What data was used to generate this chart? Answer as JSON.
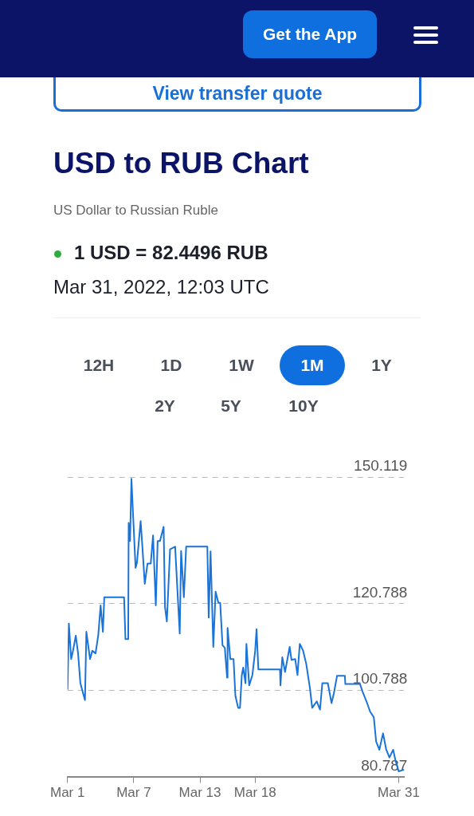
{
  "chart_data": {
    "type": "line",
    "title": "USD to RUB Chart",
    "subtitle": "US Dollar to Russian Ruble",
    "annotations": [
      "Get the App",
      "View transfer quote",
      "1 USD = 82.4496 RUB",
      "Mar 31, 2022, 12:03 UTC",
      "12H",
      "1D",
      "1W",
      "1M",
      "1Y",
      "2Y",
      "5Y",
      "10Y"
    ],
    "x": [
      "2022-03-01T00:00",
      "2022-03-01T03:00",
      "2022-03-01T08:00",
      "2022-03-01T12:00",
      "2022-03-01T18:00",
      "2022-03-01T23:00",
      "2022-03-02T04:00",
      "2022-03-02T10:00",
      "2022-03-02T14:00",
      "2022-03-02T17:00",
      "2022-03-03T01:00",
      "2022-03-03T06:00",
      "2022-03-03T13:00",
      "2022-03-03T19:00",
      "2022-03-04T00:00",
      "2022-03-04T05:00",
      "2022-03-04T08:00",
      "2022-03-06T03:00",
      "2022-03-06T06:00",
      "2022-03-06T12:00",
      "2022-03-06T13:00",
      "2022-03-06T16:00",
      "2022-03-06T19:00",
      "2022-03-06T22:00",
      "2022-03-07T04:00",
      "2022-03-07T07:00",
      "2022-03-07T15:00",
      "2022-03-07T18:00",
      "2022-03-08T00:00",
      "2022-03-08T06:00",
      "2022-03-08T13:00",
      "2022-03-08T18:00",
      "2022-03-09T00:00",
      "2022-03-09T04:00",
      "2022-03-09T09:00",
      "2022-03-09T17:00",
      "2022-03-09T20:00",
      "2022-03-10T00:00",
      "2022-03-10T07:00",
      "2022-03-10T18:00",
      "2022-03-11T04:00",
      "2022-03-11T07:00",
      "2022-03-11T13:00",
      "2022-03-11T18:00",
      "2022-03-13T16:00",
      "2022-03-13T19:00",
      "2022-03-13T23:00",
      "2022-03-14T05:00",
      "2022-03-14T10:00",
      "2022-03-14T16:00",
      "2022-03-14T20:00",
      "2022-03-15T01:00",
      "2022-03-15T06:00",
      "2022-03-15T11:00",
      "2022-03-15T12:00",
      "2022-03-15T18:00",
      "2022-03-16T01:00",
      "2022-03-16T05:00",
      "2022-03-16T11:00",
      "2022-03-16T15:00",
      "2022-03-16T19:00",
      "2022-03-16T22:00",
      "2022-03-17T03:00",
      "2022-03-17T05:00",
      "2022-03-17T11:00",
      "2022-03-17T18:00",
      "2022-03-18T00:00",
      "2022-03-18T03:00",
      "2022-03-18T07:00",
      "2022-03-20T06:00",
      "2022-03-20T07:00",
      "2022-03-20T11:00",
      "2022-03-20T17:00",
      "2022-03-21T03:00",
      "2022-03-21T07:00",
      "2022-03-21T15:00",
      "2022-03-21T20:00",
      "2022-03-22T01:00",
      "2022-03-22T08:00",
      "2022-03-22T15:00",
      "2022-03-22T23:00",
      "2022-03-23T04:00",
      "2022-03-23T14:00",
      "2022-03-23T21:00",
      "2022-03-24T02:00",
      "2022-03-24T14:00",
      "2022-03-24T22:00",
      "2022-03-25T03:00",
      "2022-03-25T10:00",
      "2022-03-26T03:00",
      "2022-03-26T04:00",
      "2022-03-27T12:00",
      "2022-03-27T17:00",
      "2022-03-28T02:00",
      "2022-03-28T10:00",
      "2022-03-28T18:00",
      "2022-03-28T23:00",
      "2022-03-29T06:00",
      "2022-03-29T14:00",
      "2022-03-29T21:00",
      "2022-03-30T04:00",
      "2022-03-30T12:00",
      "2022-03-30T17:00",
      "2022-03-31T00:00",
      "2022-03-31T12:00"
    ],
    "series": [
      {
        "color": "#1a73d9",
        "values": [
          100.9,
          116.2,
          108.0,
          109.9,
          113.4,
          109.3,
          102.4,
          100.0,
          98.5,
          114.3,
          108.0,
          109.9,
          109.3,
          113.6,
          120.4,
          114.3,
          122.3,
          122.3,
          112.6,
          112.6,
          139.5,
          135.3,
          149.7,
          142.7,
          129.1,
          130.3,
          139.9,
          135.3,
          125.4,
          130.1,
          130.1,
          136.6,
          120.4,
          135.3,
          135.3,
          138.6,
          120.0,
          116.7,
          133.4,
          134.0,
          113.9,
          133.0,
          122.3,
          134.0,
          134.0,
          117.6,
          132.9,
          110.8,
          123.6,
          121.0,
          121.0,
          111.2,
          110.6,
          103.7,
          115.2,
          108.0,
          108.0,
          99.5,
          96.7,
          96.7,
          104.3,
          106.0,
          102.4,
          111.5,
          101.9,
          104.3,
          109.9,
          114.9,
          105.6,
          105.6,
          101.9,
          108.4,
          105.0,
          110.8,
          107.8,
          108.0,
          104.3,
          111.5,
          110.0,
          106.9,
          101.3,
          96.7,
          98.2,
          96.3,
          102.4,
          102.4,
          97.8,
          100.0,
          104.1,
          104.1,
          102.2,
          102.2,
          100.6,
          98.2,
          95.8,
          94.5,
          88.9,
          87.0,
          90.8,
          87.0,
          85.2,
          87.0,
          84.6,
          82.0,
          82.4
        ]
      }
    ],
    "xlim": [
      "2022-03-01",
      "2022-03-31T12:00"
    ],
    "xticks": [
      {
        "value": "2022-03-01",
        "label": "Mar 1"
      },
      {
        "value": "2022-03-07",
        "label": "Mar 7"
      },
      {
        "value": "2022-03-13",
        "label": "Mar 13"
      },
      {
        "value": "2022-03-18",
        "label": "Mar 18"
      },
      {
        "value": "2022-03-31",
        "label": "Mar 31"
      }
    ],
    "ylim": [
      80.787,
      150.119
    ],
    "yticks": [
      80.787,
      100.788,
      120.788,
      150.119
    ],
    "grid": "y",
    "legend": false,
    "marker": "none",
    "line_style": "solid"
  }
}
